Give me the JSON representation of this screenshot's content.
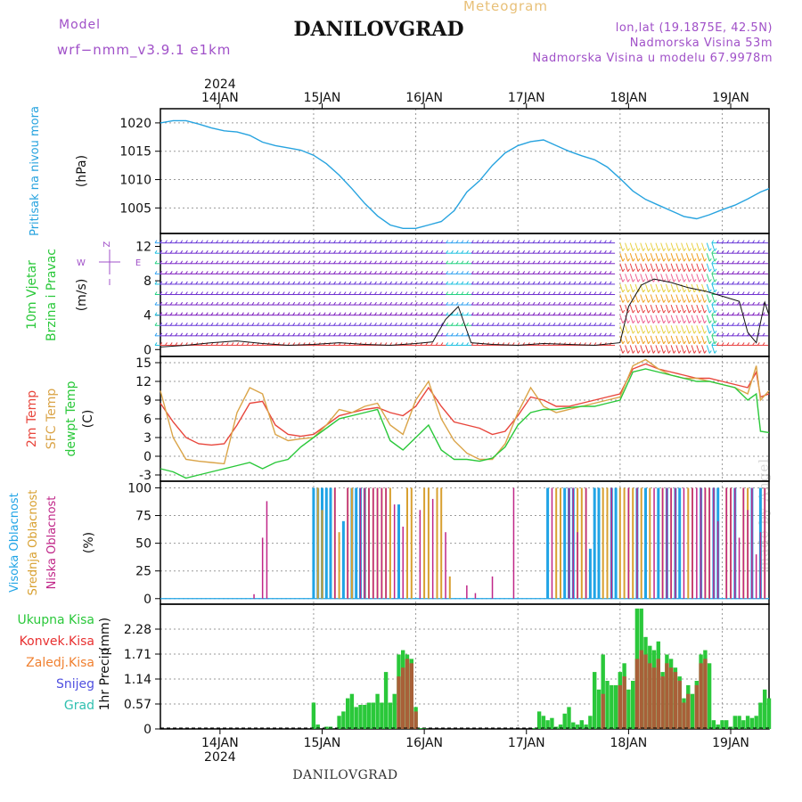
{
  "header": {
    "title": "DANILOVGRAD",
    "subtitle": "Meteogram",
    "model_label": "Model",
    "model_value": "wrf−nmm_v3.9.1  e1km",
    "info_lines": [
      "lon,lat (19.1875E, 42.5N)",
      "Nadmorska Visina 53m",
      "Nadmorska Visina u modelu 67.9978m"
    ]
  },
  "footer": {
    "location": "DANILOVGRAD",
    "credit": "made by Angel"
  },
  "time_axis": {
    "labels": [
      "14JAN",
      "15JAN",
      "16JAN",
      "17JAN",
      "18JAN",
      "19JAN"
    ],
    "year": "2024",
    "range_hours": [
      0,
      143
    ]
  },
  "colors": {
    "pressure": "#27a3df",
    "t2m": "#e8463c",
    "sfc": "#daa448",
    "dewpt": "#2ac83a",
    "wind_speed": "#111111",
    "vis": "#20a4e6",
    "sred": "#d8a030",
    "nis": "#c02688",
    "rain": "#2ac83a",
    "conv": "#a86038"
  },
  "chart_data": [
    {
      "type": "line",
      "panel": "pressure",
      "ylabel": [
        "Pritisak na nivou mora",
        "(hPa)"
      ],
      "yticks": [
        1005,
        1010,
        1015,
        1020
      ],
      "ylim": [
        1000.5,
        1022.5
      ],
      "x": [
        0,
        3,
        6,
        9,
        12,
        15,
        18,
        21,
        24,
        27,
        30,
        33,
        36,
        39,
        42,
        45,
        48,
        51,
        54,
        57,
        60,
        63,
        66,
        69,
        72,
        75,
        78,
        81,
        84,
        87,
        90,
        93,
        96,
        99,
        102,
        105,
        108,
        111,
        114,
        117,
        120,
        123,
        126,
        129,
        132,
        135,
        138,
        141,
        143
      ],
      "values": [
        1020.0,
        1020.4,
        1020.4,
        1019.8,
        1019.1,
        1018.6,
        1018.4,
        1017.8,
        1016.6,
        1016.0,
        1015.6,
        1015.2,
        1014.3,
        1012.8,
        1010.8,
        1008.4,
        1005.8,
        1003.6,
        1002.0,
        1001.4,
        1001.4,
        1002.0,
        1002.6,
        1004.5,
        1007.8,
        1009.8,
        1012.5,
        1014.7,
        1016.0,
        1016.7,
        1017.0,
        1016.0,
        1015.0,
        1014.2,
        1013.5,
        1012.2,
        1010.2,
        1008.0,
        1006.5,
        1005.5,
        1004.5,
        1003.5,
        1003.1,
        1003.8,
        1004.7,
        1005.5,
        1006.6,
        1007.8,
        1008.4
      ]
    },
    {
      "type": "barbs",
      "panel": "wind",
      "ylabel": [
        "10m Vjetar",
        "Brzina i Pravac",
        "(m/s)"
      ],
      "compass": [
        "Z",
        "I",
        "W",
        "E"
      ],
      "yticks": [
        0,
        4,
        8,
        12
      ],
      "ylim": [
        -0.8,
        13.5
      ],
      "speed_x": [
        0,
        6,
        12,
        18,
        24,
        30,
        36,
        42,
        48,
        54,
        60,
        64,
        67,
        70,
        73,
        78,
        84,
        90,
        96,
        102,
        108,
        110,
        113,
        116,
        120,
        124,
        128,
        132,
        136,
        138,
        140,
        142,
        143
      ],
      "speed_values": [
        0.3,
        0.5,
        0.8,
        1.0,
        0.7,
        0.5,
        0.6,
        0.8,
        0.6,
        0.5,
        0.7,
        0.9,
        3.5,
        5.0,
        0.8,
        0.6,
        0.5,
        0.7,
        0.6,
        0.5,
        0.8,
        5.0,
        7.5,
        8.2,
        7.8,
        7.2,
        6.8,
        6.2,
        5.6,
        2.0,
        0.8,
        5.5,
        4.0
      ]
    },
    {
      "type": "line",
      "panel": "temperature",
      "ylabel": [
        "2m Temp",
        "SFC Temp",
        "dewpt Temp",
        "(C)"
      ],
      "yticks": [
        -3,
        0,
        3,
        6,
        9,
        12,
        15
      ],
      "ylim": [
        -4,
        16
      ],
      "x": [
        0,
        3,
        6,
        9,
        12,
        15,
        18,
        21,
        24,
        27,
        30,
        33,
        36,
        39,
        42,
        45,
        48,
        51,
        54,
        57,
        60,
        63,
        66,
        69,
        72,
        75,
        78,
        81,
        84,
        87,
        90,
        93,
        96,
        99,
        102,
        105,
        108,
        111,
        114,
        117,
        120,
        123,
        126,
        129,
        132,
        135,
        138,
        140,
        141,
        143
      ],
      "series": [
        {
          "name": "2m Temp",
          "color": "#e8463c",
          "values": [
            8.5,
            5.5,
            3.0,
            2.0,
            1.8,
            2.0,
            5.0,
            8.5,
            8.8,
            5.0,
            3.5,
            3.2,
            3.5,
            5.0,
            6.5,
            7.0,
            7.5,
            7.8,
            7.0,
            6.5,
            8.0,
            11.0,
            8.0,
            5.5,
            5.0,
            4.5,
            3.5,
            4.0,
            6.5,
            9.5,
            9.0,
            8.0,
            8.0,
            8.5,
            9.0,
            9.5,
            10.0,
            14.0,
            14.8,
            14.0,
            13.5,
            13.0,
            12.5,
            12.5,
            12.0,
            11.5,
            11.0,
            13.5,
            9.5,
            10.0
          ]
        },
        {
          "name": "SFC Temp",
          "color": "#daa448",
          "values": [
            10.5,
            3.0,
            -0.5,
            -0.8,
            -1.0,
            -1.2,
            7.0,
            11.0,
            10.0,
            3.5,
            2.5,
            2.8,
            3.0,
            5.0,
            7.5,
            7.0,
            8.0,
            8.5,
            5.0,
            3.5,
            9.0,
            12.0,
            6.0,
            2.5,
            0.5,
            -0.5,
            -0.5,
            2.0,
            7.0,
            11.0,
            8.0,
            7.0,
            7.5,
            8.0,
            8.5,
            9.0,
            9.5,
            14.5,
            15.5,
            14.0,
            13.0,
            12.5,
            12.5,
            12.0,
            11.5,
            11.0,
            10.0,
            14.5,
            9.0,
            10.5
          ]
        },
        {
          "name": "dewpt Temp",
          "color": "#2ac83a",
          "values": [
            -2.0,
            -2.5,
            -3.5,
            -3.0,
            -2.5,
            -2.0,
            -1.5,
            -1.0,
            -2.0,
            -1.0,
            -0.5,
            1.5,
            3.0,
            4.5,
            6.0,
            6.5,
            7.0,
            7.5,
            2.5,
            1.0,
            3.0,
            5.0,
            1.0,
            -0.5,
            -0.5,
            -0.8,
            -0.3,
            1.5,
            5.0,
            7.0,
            7.5,
            7.5,
            7.8,
            8.0,
            8.0,
            8.5,
            9.0,
            13.5,
            14.0,
            13.5,
            13.0,
            12.5,
            12.0,
            12.0,
            11.5,
            11.0,
            9.0,
            10.0,
            4.0,
            3.8
          ]
        }
      ]
    },
    {
      "type": "bar",
      "panel": "cloud",
      "ylabel": [
        "Visoka Oblacnost",
        "Srednja Oblacnost",
        "Niska Oblacnost",
        "(%)"
      ],
      "yticks": [
        0,
        25,
        50,
        75,
        100
      ],
      "ylim": [
        -5,
        106
      ],
      "series": [
        {
          "name": "Visoka Oblacnost",
          "color": "#20a4e6",
          "x": [
            36,
            37,
            38,
            39,
            40,
            43,
            45,
            46,
            47,
            48,
            56,
            91,
            95,
            96,
            97,
            101,
            102,
            103,
            106,
            107,
            112,
            114,
            117,
            119,
            121,
            122,
            127,
            130,
            131,
            135,
            139,
            141
          ],
          "values": [
            100,
            100,
            100,
            100,
            100,
            70,
            100,
            100,
            100,
            100,
            85,
            100,
            100,
            100,
            100,
            45,
            100,
            100,
            100,
            100,
            100,
            100,
            100,
            100,
            100,
            100,
            100,
            100,
            100,
            100,
            100,
            100
          ]
        },
        {
          "name": "Srednja Oblacnost",
          "color": "#d8a030",
          "x": [
            37,
            38,
            41,
            42,
            44,
            45,
            48,
            49,
            50,
            51,
            52,
            53,
            54,
            58,
            59,
            62,
            63,
            65,
            66,
            68,
            93,
            94,
            98,
            99,
            100,
            104,
            105,
            108,
            109,
            110,
            111,
            113,
            115,
            118,
            120,
            124,
            125,
            128,
            129,
            133,
            134,
            137,
            138,
            142
          ],
          "values": [
            100,
            80,
            100,
            60,
            100,
            100,
            100,
            100,
            100,
            100,
            100,
            100,
            100,
            100,
            100,
            100,
            100,
            100,
            100,
            20,
            100,
            100,
            100,
            100,
            100,
            100,
            100,
            100,
            100,
            100,
            100,
            100,
            100,
            100,
            100,
            100,
            100,
            100,
            100,
            100,
            100,
            100,
            100,
            100
          ]
        },
        {
          "name": "Niska Oblacnost",
          "color": "#c02688",
          "x": [
            22,
            24,
            25,
            41,
            44,
            47,
            48,
            49,
            50,
            51,
            52,
            53,
            55,
            57,
            61,
            64,
            67,
            72,
            74,
            78,
            83,
            92,
            96,
            97,
            98,
            100,
            106,
            110,
            112,
            116,
            118,
            119,
            120,
            121,
            123,
            125,
            126,
            127,
            128,
            129,
            130,
            131,
            133,
            134,
            135,
            136,
            137,
            138,
            139,
            140,
            141,
            142
          ],
          "values": [
            4,
            55,
            88,
            100,
            100,
            100,
            100,
            100,
            100,
            100,
            100,
            100,
            85,
            65,
            80,
            90,
            60,
            12,
            5,
            20,
            100,
            100,
            100,
            100,
            60,
            100,
            100,
            100,
            100,
            100,
            100,
            100,
            100,
            100,
            100,
            100,
            100,
            100,
            100,
            100,
            100,
            70,
            100,
            100,
            100,
            55,
            100,
            80,
            100,
            40,
            60,
            100
          ]
        }
      ]
    },
    {
      "type": "bar",
      "panel": "precipitation",
      "ylabel": [
        "1hr Precip",
        "(mm)"
      ],
      "legend": [
        "Ukupna Kisa",
        "Konvek.Kisa",
        "Zaledj.Kisa",
        "Snijeg",
        "Grad"
      ],
      "yticks": [
        0,
        0.57,
        1.14,
        1.71,
        2.28
      ],
      "ylim": [
        0,
        2.85
      ],
      "series": [
        {
          "name": "Ukupna Kisa",
          "color": "#2ac83a",
          "x": [
            36,
            37,
            39,
            40,
            42,
            43,
            44,
            45,
            46,
            47,
            48,
            49,
            50,
            51,
            52,
            53,
            54,
            55,
            56,
            57,
            58,
            59,
            60,
            61,
            62,
            88,
            89,
            90,
            91,
            92,
            93,
            94,
            95,
            96,
            97,
            98,
            99,
            100,
            101,
            102,
            103,
            104,
            105,
            106,
            107,
            108,
            109,
            110,
            111,
            112,
            113,
            114,
            115,
            116,
            117,
            118,
            119,
            120,
            121,
            122,
            123,
            124,
            125,
            126,
            127,
            128,
            129,
            130,
            131,
            132,
            133,
            134,
            135,
            136,
            137,
            138,
            139,
            140,
            141,
            142,
            143
          ],
          "values": [
            0.6,
            0.1,
            0.05,
            0.05,
            0.3,
            0.4,
            0.7,
            0.8,
            0.5,
            0.55,
            0.55,
            0.6,
            0.6,
            0.8,
            0.6,
            1.3,
            0.6,
            0.8,
            1.7,
            1.8,
            1.7,
            1.6,
            0.5,
            0.02,
            0.02,
            0.02,
            0.4,
            0.3,
            0.2,
            0.25,
            0.05,
            0.1,
            0.35,
            0.5,
            0.15,
            0.1,
            0.2,
            0.1,
            0.3,
            1.3,
            0.9,
            1.7,
            1.1,
            1.0,
            1.0,
            1.3,
            1.5,
            0.9,
            1.1,
            2.75,
            2.75,
            2.1,
            1.9,
            1.8,
            2.0,
            1.3,
            1.7,
            1.6,
            1.4,
            1.2,
            0.7,
            1.0,
            0.8,
            1.1,
            1.7,
            1.8,
            1.5,
            0.2,
            0.1,
            0.2,
            0.2,
            0.05,
            0.3,
            0.3,
            0.2,
            0.3,
            0.25,
            0.3,
            0.6,
            0.9,
            0.7
          ]
        },
        {
          "name": "Konvek.Kisa",
          "color": "#a86038",
          "x": [
            56,
            57,
            58,
            59,
            60,
            104,
            108,
            109,
            112,
            113,
            114,
            115,
            116,
            117,
            118,
            119,
            120,
            121,
            122,
            123,
            124,
            126,
            127,
            128
          ],
          "values": [
            1.2,
            1.4,
            1.6,
            1.5,
            0.4,
            0.8,
            1.0,
            1.2,
            1.6,
            1.8,
            1.7,
            1.5,
            1.4,
            1.6,
            1.2,
            1.5,
            1.4,
            1.3,
            1.1,
            0.6,
            0.8,
            1.0,
            1.5,
            1.6
          ]
        }
      ]
    }
  ]
}
